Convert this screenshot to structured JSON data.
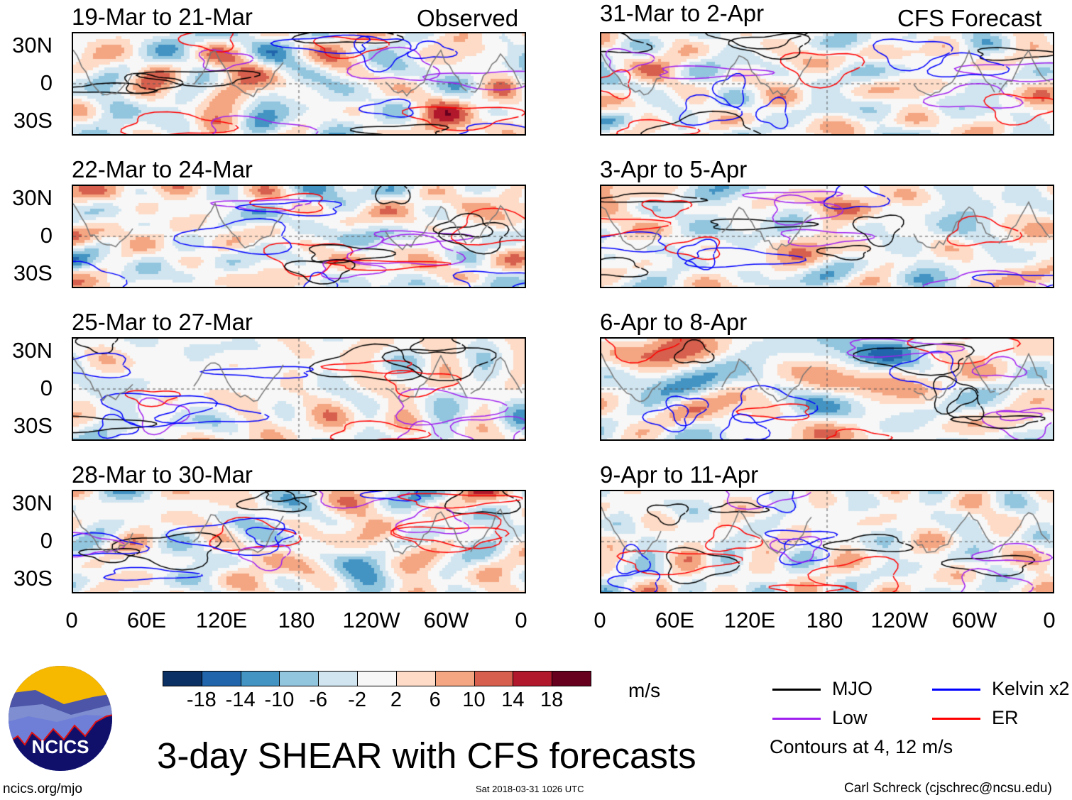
{
  "observed_label": "Observed",
  "forecast_label": "CFS Forecast",
  "panels_left": [
    {
      "title": "19-Mar to 21-Mar",
      "seed": 1
    },
    {
      "title": "22-Mar to 24-Mar",
      "seed": 2
    },
    {
      "title": "25-Mar to 27-Mar",
      "seed": 3
    },
    {
      "title": "28-Mar to 30-Mar",
      "seed": 4
    }
  ],
  "panels_right": [
    {
      "title": "31-Mar to 2-Apr",
      "seed": 5
    },
    {
      "title": "3-Apr to 5-Apr",
      "seed": 6
    },
    {
      "title": "6-Apr to 8-Apr",
      "seed": 7
    },
    {
      "title": "9-Apr to 11-Apr",
      "seed": 8
    }
  ],
  "lat_labels": [
    "30N",
    "0",
    "30S"
  ],
  "lon_labels": [
    "0",
    "60E",
    "120E",
    "180",
    "120W",
    "60W",
    "0"
  ],
  "colorbar": {
    "colors": [
      "#0b3063",
      "#2166ac",
      "#4393c3",
      "#92c5de",
      "#d1e5f0",
      "#f7f7f7",
      "#fddbc7",
      "#f4a582",
      "#d6604d",
      "#b2182b",
      "#67001f"
    ],
    "labels": [
      "-18",
      "-14",
      "-10",
      "-6",
      "-2",
      "2",
      "6",
      "10",
      "14",
      "18"
    ],
    "units": "m/s"
  },
  "legend": [
    {
      "label": "MJO",
      "color": "#000000"
    },
    {
      "label": "Kelvin x2",
      "color": "#0000ff"
    },
    {
      "label": "Low",
      "color": "#a020f0"
    },
    {
      "label": "ER",
      "color": "#ff0000"
    }
  ],
  "contour_note": "Contours at 4, 12 m/s",
  "main_title": "3-day SHEAR with CFS forecasts",
  "logo_text": "NCICS",
  "website": "ncics.org/mjo",
  "timestamp": "Sat 2018-03-31 1026 UTC",
  "author": "Carl Schreck (cjschrec@ncsu.edu)"
}
